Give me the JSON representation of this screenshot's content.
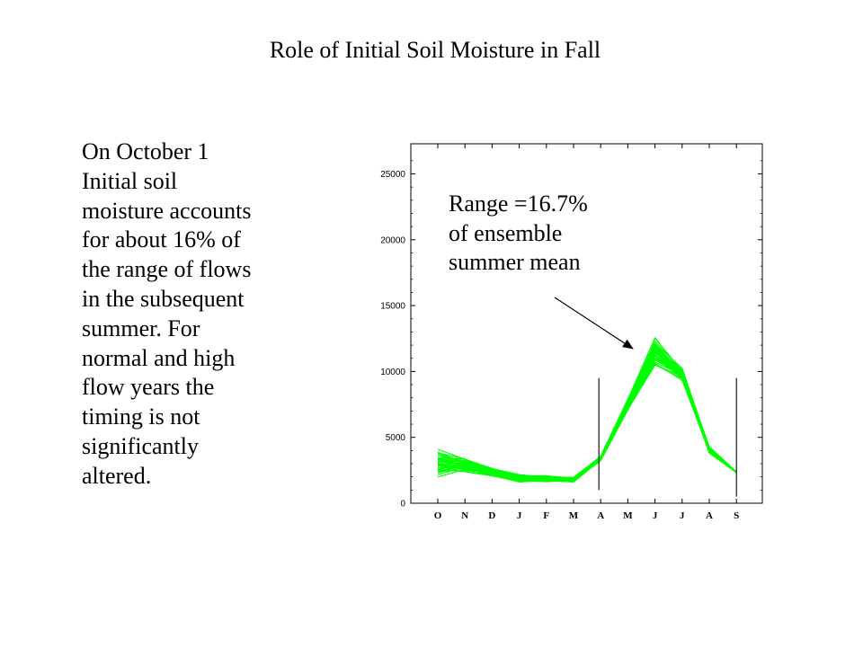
{
  "slide": {
    "title": "Role of Initial Soil Moisture in Fall",
    "body_lines": [
      "On October 1",
      "Initial soil",
      "moisture accounts",
      "for about 16% of",
      "the range of flows",
      "in the subsequent",
      "summer.  For",
      "normal and high",
      "flow years the",
      "timing is not",
      "significantly",
      "altered."
    ]
  },
  "chart_data": {
    "type": "line",
    "title": "",
    "xlabel": "",
    "ylabel": "",
    "categories": [
      "O",
      "N",
      "D",
      "J",
      "F",
      "M",
      "A",
      "M",
      "J",
      "J",
      "A",
      "S"
    ],
    "ylim": [
      0,
      27000
    ],
    "yticks": [
      0,
      5000,
      10000,
      15000,
      20000,
      25000
    ],
    "ytick_labels": [
      "0",
      "5000",
      "10000",
      "15000",
      "20000",
      "25000"
    ],
    "series_color": "#00ff00",
    "ensemble_range": {
      "low": [
        1900,
        2300,
        2000,
        1600,
        1600,
        1600,
        3200,
        7000,
        10200,
        9300,
        3800,
        2300
      ],
      "high": [
        4200,
        3500,
        2700,
        2200,
        2100,
        2000,
        3600,
        8000,
        12700,
        10300,
        4300,
        2400
      ]
    },
    "ensemble_member_count": 38,
    "vertical_markers": [
      {
        "at": "A",
        "ymin": 1000,
        "ymax": 9500
      },
      {
        "at": "S",
        "ymin": 500,
        "ymax": 9500
      }
    ],
    "annotation": {
      "lines": [
        "Range =16.7%",
        "of ensemble",
        "summer mean"
      ],
      "points_to": "J"
    }
  }
}
